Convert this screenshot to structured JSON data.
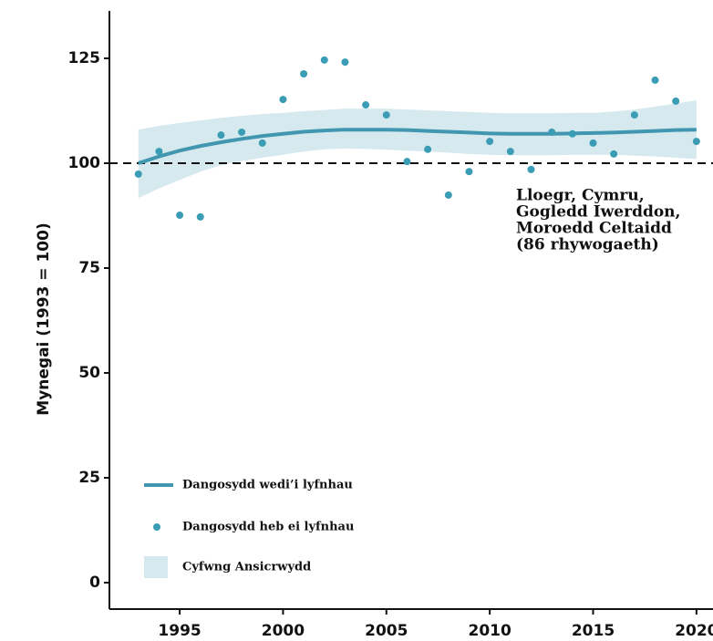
{
  "chart_data": {
    "type": "line",
    "y_label": "Mynegai (1993 = 100)",
    "x": [
      1993,
      1994,
      1995,
      1996,
      1997,
      1998,
      1999,
      2000,
      2001,
      2002,
      2003,
      2004,
      2005,
      2006,
      2007,
      2008,
      2009,
      2010,
      2011,
      2012,
      2013,
      2014,
      2015,
      2016,
      2017,
      2018,
      2019,
      2020
    ],
    "series": [
      {
        "name": "Cyfwng Ansicrwydd",
        "kind": "band",
        "color": "#d6e9ef",
        "lower": [
          91.7,
          94,
          96,
          98,
          99.5,
          100.5,
          101.3,
          102,
          102.8,
          103.3,
          103.5,
          103.4,
          103.2,
          103,
          102.8,
          102.5,
          102.2,
          102,
          101.9,
          101.9,
          101.9,
          102,
          102,
          102,
          101.8,
          101.6,
          101.3,
          101
        ],
        "upper": [
          108,
          108.9,
          109.6,
          110.2,
          110.8,
          111.3,
          111.7,
          112,
          112.4,
          112.7,
          113,
          113,
          113,
          112.8,
          112.6,
          112.4,
          112.2,
          112,
          111.9,
          111.9,
          111.9,
          112,
          112,
          112.3,
          112.8,
          113.5,
          114.2,
          115
        ]
      },
      {
        "name": "Dangosydd wedi’i lyfnhau",
        "kind": "line",
        "color": "#4196b0",
        "values": [
          100,
          101.6,
          103,
          104.1,
          105,
          105.8,
          106.5,
          107,
          107.5,
          107.8,
          108,
          108,
          108,
          107.9,
          107.7,
          107.5,
          107.3,
          107.1,
          107,
          107,
          107,
          107.1,
          107.2,
          107.3,
          107.5,
          107.7,
          107.9,
          108
        ]
      },
      {
        "name": "Dangosydd heb ei lyfnhau",
        "kind": "points",
        "color": "#3a9db5",
        "values": [
          97.4,
          102.8,
          87.6,
          87.2,
          106.7,
          107.4,
          104.8,
          115.2,
          121.3,
          124.6,
          124.1,
          113.9,
          111.5,
          100.4,
          103.3,
          92.4,
          98.0,
          105.2,
          102.8,
          98.5,
          107.4,
          107.0,
          104.8,
          102.2,
          111.5,
          119.8,
          114.8,
          105.2
        ]
      }
    ],
    "reference_line": 100,
    "annotation": [
      "Lloegr, Cymru,",
      "Gogledd Iwerddon,",
      "Moroedd Celtaidd",
      "(86 rhywogaeth)"
    ],
    "xlim": [
      1991.6,
      2020.8
    ],
    "xticks": [
      1995,
      2000,
      2005,
      2010,
      2015,
      2020
    ],
    "ylim": [
      -6.3,
      136.3
    ],
    "yticks": [
      0,
      25,
      50,
      75,
      100,
      125
    ]
  }
}
